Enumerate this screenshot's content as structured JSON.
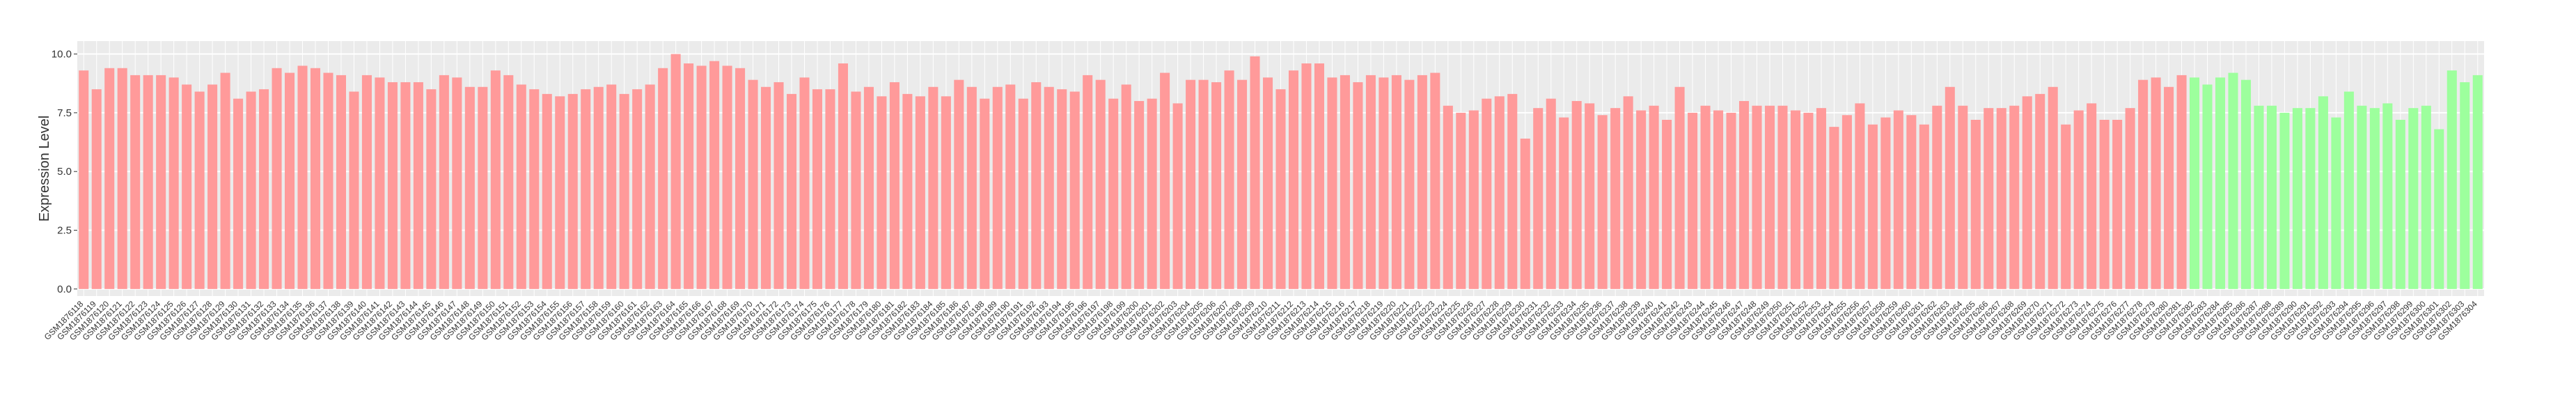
{
  "chart_data": {
    "type": "bar",
    "y_label": "Expression Level",
    "ylim": [
      -0.3,
      10.55
    ],
    "yticks": [
      {
        "value": 0,
        "label": "0.0"
      },
      {
        "value": 2.5,
        "label": "2.5"
      },
      {
        "value": 5,
        "label": "5.0"
      },
      {
        "value": 7.5,
        "label": "7.5"
      },
      {
        "value": 10,
        "label": "10.0"
      }
    ],
    "grid": true,
    "categories": [
      "GSM1876118",
      "GSM1876119",
      "GSM1876120",
      "GSM1876121",
      "GSM1876122",
      "GSM1876123",
      "GSM1876124",
      "GSM1876125",
      "GSM1876126",
      "GSM1876127",
      "GSM1876128",
      "GSM1876129",
      "GSM1876130",
      "GSM1876131",
      "GSM1876132",
      "GSM1876133",
      "GSM1876134",
      "GSM1876135",
      "GSM1876136",
      "GSM1876137",
      "GSM1876138",
      "GSM1876139",
      "GSM1876140",
      "GSM1876141",
      "GSM1876142",
      "GSM1876143",
      "GSM1876144",
      "GSM1876145",
      "GSM1876146",
      "GSM1876147",
      "GSM1876148",
      "GSM1876149",
      "GSM1876150",
      "GSM1876151",
      "GSM1876152",
      "GSM1876153",
      "GSM1876154",
      "GSM1876155",
      "GSM1876156",
      "GSM1876157",
      "GSM1876158",
      "GSM1876159",
      "GSM1876160",
      "GSM1876161",
      "GSM1876162",
      "GSM1876163",
      "GSM1876164",
      "GSM1876165",
      "GSM1876166",
      "GSM1876167",
      "GSM1876168",
      "GSM1876169",
      "GSM1876170",
      "GSM1876171",
      "GSM1876172",
      "GSM1876173",
      "GSM1876174",
      "GSM1876175",
      "GSM1876176",
      "GSM1876177",
      "GSM1876178",
      "GSM1876179",
      "GSM1876180",
      "GSM1876181",
      "GSM1876182",
      "GSM1876183",
      "GSM1876184",
      "GSM1876185",
      "GSM1876186",
      "GSM1876187",
      "GSM1876188",
      "GSM1876189",
      "GSM1876190",
      "GSM1876191",
      "GSM1876192",
      "GSM1876193",
      "GSM1876194",
      "GSM1876195",
      "GSM1876196",
      "GSM1876197",
      "GSM1876198",
      "GSM1876199",
      "GSM1876200",
      "GSM1876201",
      "GSM1876202",
      "GSM1876203",
      "GSM1876204",
      "GSM1876205",
      "GSM1876206",
      "GSM1876207",
      "GSM1876208",
      "GSM1876209",
      "GSM1876210",
      "GSM1876211",
      "GSM1876212",
      "GSM1876213",
      "GSM1876214",
      "GSM1876215",
      "GSM1876216",
      "GSM1876217",
      "GSM1876218",
      "GSM1876219",
      "GSM1876220",
      "GSM1876221",
      "GSM1876222",
      "GSM1876223",
      "GSM1876224",
      "GSM1876225",
      "GSM1876226",
      "GSM1876227",
      "GSM1876228",
      "GSM1876229",
      "GSM1876230",
      "GSM1876231",
      "GSM1876232",
      "GSM1876233",
      "GSM1876234",
      "GSM1876235",
      "GSM1876236",
      "GSM1876237",
      "GSM1876238",
      "GSM1876239",
      "GSM1876240",
      "GSM1876241",
      "GSM1876242",
      "GSM1876243",
      "GSM1876244",
      "GSM1876245",
      "GSM1876246",
      "GSM1876247",
      "GSM1876248",
      "GSM1876249",
      "GSM1876250",
      "GSM1876251",
      "GSM1876252",
      "GSM1876253",
      "GSM1876254",
      "GSM1876255",
      "GSM1876256",
      "GSM1876257",
      "GSM1876258",
      "GSM1876259",
      "GSM1876260",
      "GSM1876261",
      "GSM1876262",
      "GSM1876263",
      "GSM1876264",
      "GSM1876265",
      "GSM1876266",
      "GSM1876267",
      "GSM1876268",
      "GSM1876269",
      "GSM1876270",
      "GSM1876271",
      "GSM1876272",
      "GSM1876273",
      "GSM1876274",
      "GSM1876275",
      "GSM1876276",
      "GSM1876277",
      "GSM1876278",
      "GSM1876279",
      "GSM1876280",
      "GSM1876281",
      "GSM1876282",
      "GSM1876283",
      "GSM1876284",
      "GSM1876285",
      "GSM1876286",
      "GSM1876287",
      "GSM1876288",
      "GSM1876289",
      "GSM1876290",
      "GSM1876291",
      "GSM1876292",
      "GSM1876293",
      "GSM1876294",
      "GSM1876295",
      "GSM1876296",
      "GSM1876297",
      "GSM1876298",
      "GSM1876299",
      "GSM1876300",
      "GSM1876301",
      "GSM1876302",
      "GSM1876303",
      "GSM1876304"
    ],
    "values": [
      9.3,
      8.5,
      9.4,
      9.4,
      9.1,
      9.1,
      9.1,
      9.0,
      8.7,
      8.4,
      8.7,
      9.2,
      8.1,
      8.4,
      8.5,
      9.4,
      9.2,
      9.5,
      9.4,
      9.2,
      9.1,
      8.4,
      9.1,
      9.0,
      8.8,
      8.8,
      8.8,
      8.5,
      9.1,
      9.0,
      8.6,
      8.6,
      9.3,
      9.1,
      8.7,
      8.5,
      8.3,
      8.2,
      8.3,
      8.5,
      8.6,
      8.7,
      8.3,
      8.5,
      8.7,
      9.4,
      10.0,
      9.6,
      9.5,
      9.7,
      9.5,
      9.4,
      8.9,
      8.6,
      8.8,
      8.3,
      9.0,
      8.5,
      8.5,
      9.6,
      8.4,
      8.6,
      8.2,
      8.8,
      8.3,
      8.2,
      8.6,
      8.2,
      8.9,
      8.6,
      8.1,
      8.6,
      8.7,
      8.1,
      8.8,
      8.6,
      8.5,
      8.4,
      9.1,
      8.9,
      8.1,
      8.7,
      8.0,
      8.1,
      9.2,
      7.9,
      8.9,
      8.9,
      8.8,
      9.3,
      8.9,
      9.9,
      9.0,
      8.5,
      9.3,
      9.6,
      9.6,
      9.0,
      9.1,
      8.8,
      9.1,
      9.0,
      9.1,
      8.9,
      9.1,
      9.2,
      7.8,
      7.5,
      7.6,
      8.1,
      8.2,
      8.3,
      6.4,
      7.7,
      8.1,
      7.3,
      8.0,
      7.9,
      7.4,
      7.7,
      8.2,
      7.6,
      7.8,
      7.2,
      8.6,
      7.5,
      7.8,
      7.6,
      7.5,
      8.0,
      7.8,
      7.8,
      7.8,
      7.6,
      7.5,
      7.7,
      6.9,
      7.4,
      7.9,
      7.0,
      7.3,
      7.6,
      7.4,
      7.0,
      7.8,
      8.6,
      7.8,
      7.2,
      7.7,
      7.7,
      7.8,
      8.2,
      8.3,
      8.6,
      7.0,
      7.6,
      7.9,
      7.2,
      7.2,
      7.7,
      8.9,
      9.0,
      8.6,
      9.1,
      9.0,
      8.7,
      9.0,
      9.2,
      8.9,
      7.8,
      7.8,
      7.5,
      7.7,
      7.7,
      8.2,
      7.3,
      8.4,
      7.8,
      7.7,
      7.9,
      7.2,
      7.7,
      7.8,
      6.8,
      9.3,
      8.8,
      9.1
    ],
    "colors": [
      "#ff9a9a",
      "#ff9a9a",
      "#ff9a9a",
      "#ff9a9a",
      "#ff9a9a",
      "#ff9a9a",
      "#ff9a9a",
      "#ff9a9a",
      "#ff9a9a",
      "#ff9a9a",
      "#ff9a9a",
      "#ff9a9a",
      "#ff9a9a",
      "#ff9a9a",
      "#ff9a9a",
      "#ff9a9a",
      "#ff9a9a",
      "#ff9a9a",
      "#ff9a9a",
      "#ff9a9a",
      "#ff9a9a",
      "#ff9a9a",
      "#ff9a9a",
      "#ff9a9a",
      "#ff9a9a",
      "#ff9a9a",
      "#ff9a9a",
      "#ff9a9a",
      "#ff9a9a",
      "#ff9a9a",
      "#ff9a9a",
      "#ff9a9a",
      "#ff9a9a",
      "#ff9a9a",
      "#ff9a9a",
      "#ff9a9a",
      "#ff9a9a",
      "#ff9a9a",
      "#ff9a9a",
      "#ff9a9a",
      "#ff9a9a",
      "#ff9a9a",
      "#ff9a9a",
      "#ff9a9a",
      "#ff9a9a",
      "#ff9a9a",
      "#ff9a9a",
      "#ff9a9a",
      "#ff9a9a",
      "#ff9a9a",
      "#ff9a9a",
      "#ff9a9a",
      "#ff9a9a",
      "#ff9a9a",
      "#ff9a9a",
      "#ff9a9a",
      "#ff9a9a",
      "#ff9a9a",
      "#ff9a9a",
      "#ff9a9a",
      "#ff9a9a",
      "#ff9a9a",
      "#ff9a9a",
      "#ff9a9a",
      "#ff9a9a",
      "#ff9a9a",
      "#ff9a9a",
      "#ff9a9a",
      "#ff9a9a",
      "#ff9a9a",
      "#ff9a9a",
      "#ff9a9a",
      "#ff9a9a",
      "#ff9a9a",
      "#ff9a9a",
      "#ff9a9a",
      "#ff9a9a",
      "#ff9a9a",
      "#ff9a9a",
      "#ff9a9a",
      "#ff9a9a",
      "#ff9a9a",
      "#ff9a9a",
      "#ff9a9a",
      "#ff9a9a",
      "#ff9a9a",
      "#ff9a9a",
      "#ff9a9a",
      "#ff9a9a",
      "#ff9a9a",
      "#ff9a9a",
      "#ff9a9a",
      "#ff9a9a",
      "#ff9a9a",
      "#ff9a9a",
      "#ff9a9a",
      "#ff9a9a",
      "#ff9a9a",
      "#ff9a9a",
      "#ff9a9a",
      "#ff9a9a",
      "#ff9a9a",
      "#ff9a9a",
      "#ff9a9a",
      "#ff9a9a",
      "#ff9a9a",
      "#ff9a9a",
      "#ff9a9a",
      "#ff9a9a",
      "#ff9a9a",
      "#ff9a9a",
      "#ff9a9a",
      "#ff9a9a",
      "#ff9a9a",
      "#ff9a9a",
      "#ff9a9a",
      "#ff9a9a",
      "#ff9a9a",
      "#ff9a9a",
      "#ff9a9a",
      "#ff9a9a",
      "#ff9a9a",
      "#ff9a9a",
      "#ff9a9a",
      "#ff9a9a",
      "#ff9a9a",
      "#ff9a9a",
      "#ff9a9a",
      "#ff9a9a",
      "#ff9a9a",
      "#ff9a9a",
      "#ff9a9a",
      "#ff9a9a",
      "#ff9a9a",
      "#ff9a9a",
      "#ff9a9a",
      "#ff9a9a",
      "#ff9a9a",
      "#ff9a9a",
      "#ff9a9a",
      "#ff9a9a",
      "#ff9a9a",
      "#ff9a9a",
      "#ff9a9a",
      "#ff9a9a",
      "#ff9a9a",
      "#ff9a9a",
      "#ff9a9a",
      "#ff9a9a",
      "#ff9a9a",
      "#ff9a9a",
      "#ff9a9a",
      "#ff9a9a",
      "#ff9a9a",
      "#ff9a9a",
      "#ff9a9a",
      "#ff9a9a",
      "#ff9a9a",
      "#ff9a9a",
      "#ff9a9a",
      "#ff9a9a",
      "#ff9a9a",
      "#ff9a9a",
      "#ff9a9a",
      "#9dff9d",
      "#9dff9d",
      "#9dff9d",
      "#9dff9d",
      "#9dff9d",
      "#9dff9d",
      "#9dff9d",
      "#9dff9d",
      "#9dff9d",
      "#9dff9d",
      "#9dff9d",
      "#9dff9d",
      "#9dff9d",
      "#9dff9d",
      "#9dff9d",
      "#9dff9d",
      "#9dff9d",
      "#9dff9d",
      "#9dff9d",
      "#9dff9d",
      "#9dff9d",
      "#9dff9d",
      "#9dff9d"
    ]
  }
}
